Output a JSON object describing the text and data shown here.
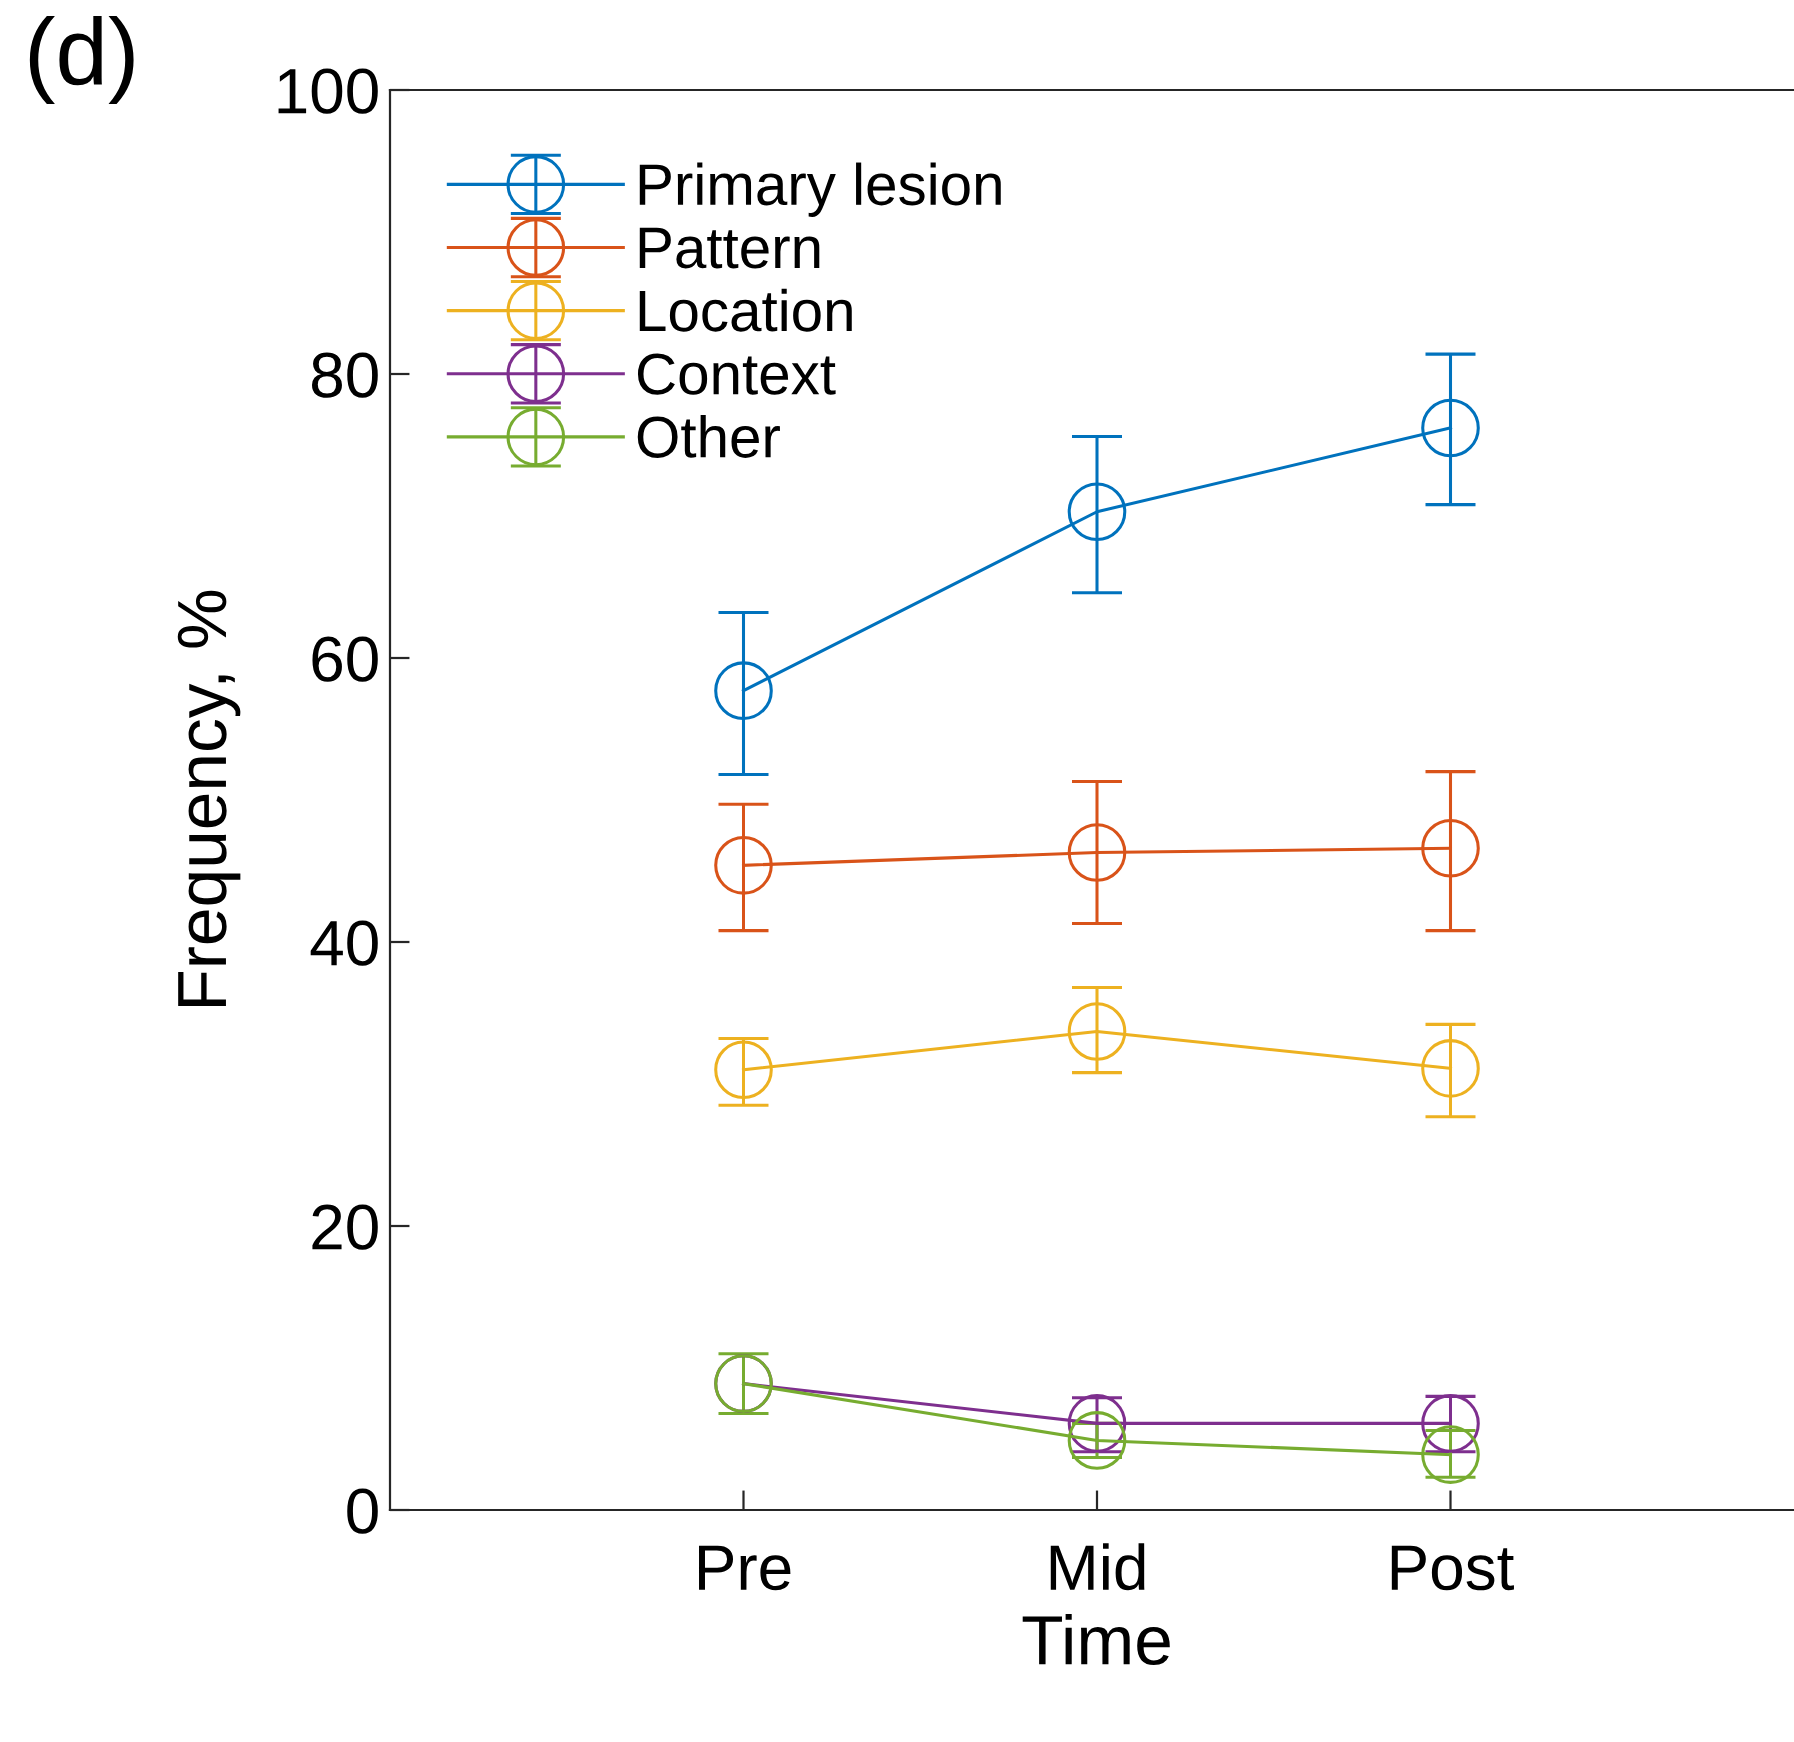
{
  "chart_data": {
    "type": "line",
    "title": "(d)",
    "xlabel": "Time",
    "ylabel": "Frequency, %",
    "categories": [
      "Pre",
      "Mid",
      "Post"
    ],
    "series": [
      {
        "name": "Primary lesion",
        "color": "#0072bd",
        "values": [
          57.7,
          70.3,
          76.2
        ],
        "errors": [
          [
            51.8,
            63.2
          ],
          [
            64.6,
            75.6
          ],
          [
            70.8,
            81.4
          ]
        ]
      },
      {
        "name": "Pattern",
        "color": "#d95319",
        "values": [
          45.4,
          46.3,
          46.6
        ],
        "errors": [
          [
            40.8,
            49.7
          ],
          [
            41.3,
            51.3
          ],
          [
            40.8,
            52.0
          ]
        ]
      },
      {
        "name": "Location",
        "color": "#edb120",
        "values": [
          31.0,
          33.7,
          31.1
        ],
        "errors": [
          [
            28.5,
            33.2
          ],
          [
            30.8,
            36.8
          ],
          [
            27.7,
            34.2
          ]
        ]
      },
      {
        "name": "Context",
        "color": "#7e2f8e",
        "values": [
          8.9,
          6.1,
          6.1
        ],
        "errors": [
          null,
          [
            4.1,
            7.9
          ],
          [
            4.1,
            8.0
          ]
        ]
      },
      {
        "name": "Other",
        "color": "#77ac30",
        "values": [
          8.9,
          4.9,
          3.9
        ],
        "errors": [
          [
            6.8,
            11.0
          ],
          [
            3.7,
            6.1
          ],
          [
            2.3,
            5.6
          ]
        ]
      }
    ],
    "ylim": [
      0,
      100
    ],
    "yticks": [
      0,
      20,
      40,
      60,
      80,
      100
    ],
    "marker": "circle",
    "line_style": "solid",
    "grid": false,
    "legend": "top left"
  }
}
